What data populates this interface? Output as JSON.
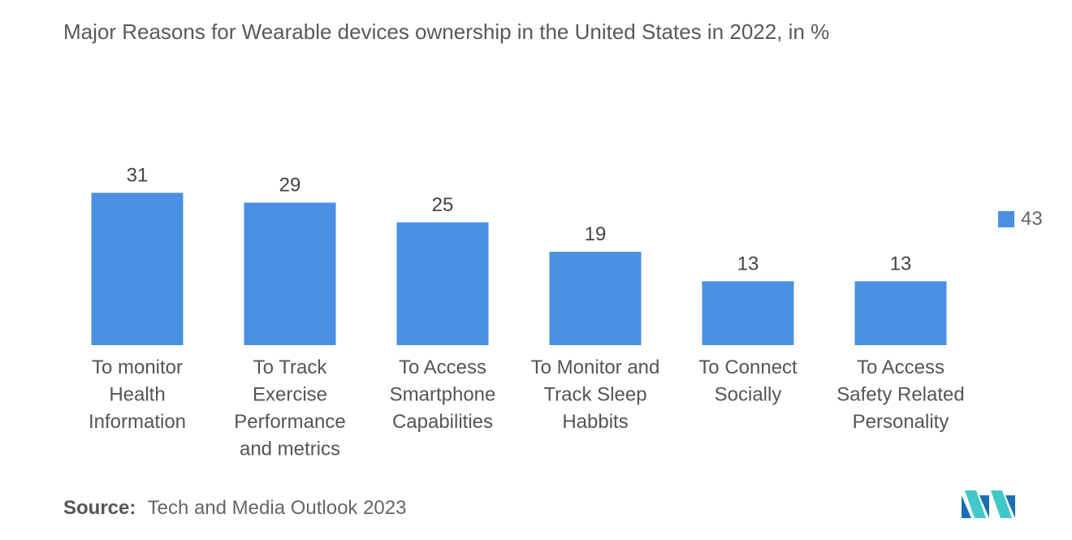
{
  "title": "Major Reasons for Wearable devices ownership in the United States in 2022, in %",
  "legend": {
    "label": "43",
    "color": "#4a90e2"
  },
  "source": {
    "key": "Source:",
    "text": "Tech and Media Outlook 2023"
  },
  "logo": {
    "icon": "mordor-intelligence-logo",
    "colors": [
      "#1a6fb3",
      "#41c8c8"
    ]
  },
  "chart_data": {
    "type": "bar",
    "title": "Major Reasons for Wearable devices ownership in the United States in 2022, in %",
    "categories": [
      [
        "To monitor",
        "Health",
        "Information"
      ],
      [
        "To Track",
        "Exercise",
        "Performance",
        "and metrics"
      ],
      [
        "To Access",
        "Smartphone",
        "Capabilities"
      ],
      [
        "To Monitor and",
        "Track Sleep",
        "Habbits"
      ],
      [
        "To Connect",
        "Socially"
      ],
      [
        "To Access",
        "Safety Related",
        "Personality"
      ]
    ],
    "series": [
      {
        "name": "43",
        "values": [
          31,
          29,
          25,
          19,
          13,
          13
        ],
        "color": "#4a90e2"
      }
    ],
    "ylim": [
      0,
      31
    ],
    "grid": false,
    "legend_position": "right",
    "data_labels": true
  }
}
